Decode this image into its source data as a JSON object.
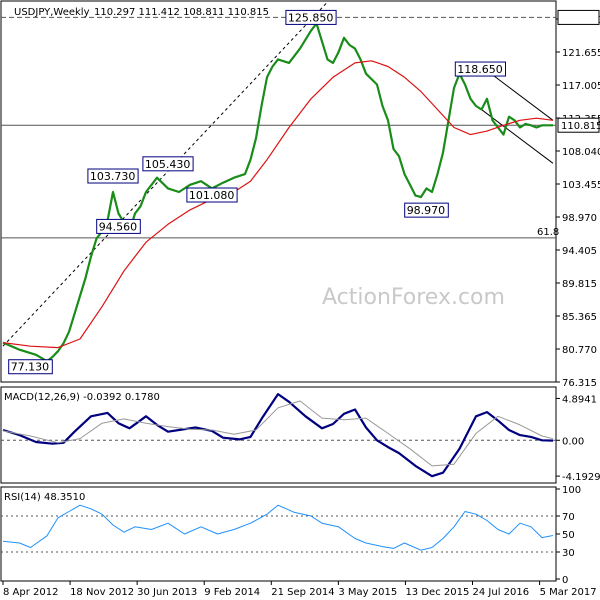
{
  "header": {
    "symbol": "USDJPY,Weekly",
    "ohlc": "110.297 111.412 108.811 110.815"
  },
  "watermark": "ActionForex.com",
  "colors": {
    "price": "#1a8c1a",
    "ma": "#dd1111",
    "macd": "#000080",
    "signal": "#999999",
    "rsi": "#1e90ff",
    "level": "#555555",
    "annotation_border": "#000080",
    "current_price_box": "#000000"
  },
  "chart_data": [
    {
      "panel": "price",
      "type": "line",
      "time_labels": [
        "8 Apr 2012",
        "18 Nov 2012",
        "30 Jun 2013",
        "9 Feb 2014",
        "21 Sep 2014",
        "3 May 2015",
        "13 Dec 2015",
        "24 Jul 2016",
        "5 Mar 2017"
      ],
      "y_ticks": [
        "125.850",
        "121.655",
        "117.005",
        "112.355",
        "108.040",
        "103.455",
        "98.970",
        "94.405",
        "89.815",
        "85.365",
        "80.770",
        "76.315"
      ],
      "ylim": [
        75.0,
        128.0
      ],
      "series": [
        {
          "kind": "price",
          "x": [
            0,
            0.03,
            0.06,
            0.08,
            0.09,
            0.1,
            0.11,
            0.12,
            0.13,
            0.14,
            0.15,
            0.16,
            0.17,
            0.18,
            0.19,
            0.2,
            0.21,
            0.23,
            0.24,
            0.25,
            0.26,
            0.28,
            0.3,
            0.32,
            0.34,
            0.36,
            0.38,
            0.4,
            0.42,
            0.44,
            0.45,
            0.46,
            0.47,
            0.48,
            0.49,
            0.5,
            0.52,
            0.54,
            0.56,
            0.57,
            0.58,
            0.59,
            0.6,
            0.61,
            0.62,
            0.63,
            0.64,
            0.65,
            0.66,
            0.68,
            0.69,
            0.7,
            0.71,
            0.72,
            0.73,
            0.74,
            0.75,
            0.76,
            0.77,
            0.78,
            0.79,
            0.8,
            0.81,
            0.82,
            0.83,
            0.84,
            0.85,
            0.86,
            0.87,
            0.88,
            0.89,
            0.9,
            0.91,
            0.92,
            0.93,
            0.94,
            0.95,
            0.96,
            0.97,
            0.98,
            0.99,
            1
          ],
          "y": [
            80.5,
            79.5,
            78.8,
            77.9,
            78.5,
            79.3,
            80.4,
            82.0,
            84.5,
            87.0,
            89.5,
            92.5,
            95.0,
            96.0,
            97.5,
            101.5,
            98.5,
            96.0,
            98.5,
            99.5,
            101.5,
            103.5,
            102.0,
            101.5,
            102.5,
            103.0,
            102.0,
            102.8,
            103.5,
            104.0,
            106.0,
            109.0,
            113.5,
            117.5,
            119.0,
            120.0,
            119.5,
            121.5,
            124.0,
            125.0,
            122.5,
            120.0,
            119.5,
            121.0,
            123.0,
            122.0,
            121.5,
            120.0,
            118.0,
            116.5,
            113.5,
            111.5,
            107.5,
            106.5,
            104.0,
            102.5,
            101.0,
            100.8,
            102.0,
            101.5,
            104.0,
            107.0,
            111.5,
            116.0,
            118.0,
            116.5,
            114.5,
            113.5,
            113.0,
            114.5,
            111.5,
            110.5,
            109.5,
            112.0,
            111.5,
            110.5,
            111.0,
            110.8,
            110.5,
            110.8,
            110.8,
            110.8
          ]
        },
        {
          "kind": "moving_average",
          "x": [
            0,
            0.05,
            0.1,
            0.14,
            0.18,
            0.22,
            0.26,
            0.3,
            0.34,
            0.38,
            0.42,
            0.45,
            0.48,
            0.52,
            0.56,
            0.6,
            0.64,
            0.67,
            0.7,
            0.73,
            0.76,
            0.79,
            0.82,
            0.85,
            0.88,
            0.91,
            0.94,
            0.97,
            1
          ],
          "y": [
            80.5,
            80.0,
            79.8,
            81.0,
            85.5,
            90.5,
            94.5,
            97.0,
            99.0,
            100.5,
            101.5,
            103.0,
            106.0,
            110.5,
            114.5,
            117.5,
            119.5,
            119.8,
            119.0,
            117.5,
            115.5,
            113.0,
            110.5,
            109.5,
            110.0,
            110.8,
            111.5,
            111.8,
            111.5
          ]
        }
      ],
      "levels": [
        {
          "label": "125.850",
          "value": 125.85,
          "style": "dashed"
        },
        {
          "label": "110.815",
          "value": 110.815,
          "style": "solid"
        },
        {
          "label": "61.8",
          "value": 95.1,
          "style": "solid"
        }
      ],
      "trendlines": [
        {
          "style": "dashed",
          "x": [
            0,
            0.59
          ],
          "y": [
            80.0,
            128.0
          ]
        },
        {
          "style": "solid",
          "x": [
            0.87,
            1.0
          ],
          "y": [
            119.0,
            111.5
          ]
        },
        {
          "style": "solid",
          "x": [
            0.87,
            1.0
          ],
          "y": [
            113.0,
            105.5
          ]
        }
      ],
      "annotations": [
        {
          "text": "125.850",
          "x": 0.56,
          "y": 125.85
        },
        {
          "text": "118.650",
          "x": 0.868,
          "y": 118.65
        },
        {
          "text": "105.430",
          "x": 0.3,
          "y": 105.43
        },
        {
          "text": "103.730",
          "x": 0.2,
          "y": 103.73
        },
        {
          "text": "101.080",
          "x": 0.38,
          "y": 101.08
        },
        {
          "text": "98.970",
          "x": 0.77,
          "y": 98.97
        },
        {
          "text": "94.560",
          "x": 0.21,
          "y": 96.7
        },
        {
          "text": "77.130",
          "x": 0.05,
          "y": 77.13
        }
      ],
      "current_price": "110.815"
    },
    {
      "panel": "macd",
      "type": "line",
      "title": "MACD(12,26,9) -0.0392 0.1780",
      "y_ticks": [
        "4.8941",
        "0.00",
        "-4.1929"
      ],
      "ylim": [
        -5.0,
        6.0
      ],
      "series": [
        {
          "kind": "macd",
          "x": [
            0,
            0.03,
            0.06,
            0.09,
            0.11,
            0.13,
            0.16,
            0.19,
            0.21,
            0.23,
            0.26,
            0.28,
            0.3,
            0.32,
            0.35,
            0.38,
            0.4,
            0.43,
            0.45,
            0.47,
            0.5,
            0.52,
            0.55,
            0.58,
            0.6,
            0.62,
            0.64,
            0.66,
            0.68,
            0.7,
            0.72,
            0.75,
            0.78,
            0.8,
            0.83,
            0.86,
            0.88,
            0.9,
            0.92,
            0.94,
            0.96,
            0.98,
            1
          ],
          "y": [
            1.2,
            0.6,
            -0.2,
            -0.4,
            -0.3,
            1.0,
            2.8,
            3.2,
            2.0,
            1.4,
            2.8,
            1.8,
            1.0,
            1.2,
            1.5,
            1.1,
            0.3,
            0.1,
            0.4,
            2.5,
            5.4,
            4.5,
            2.8,
            1.4,
            1.9,
            3.1,
            3.6,
            1.5,
            0.0,
            -0.8,
            -1.5,
            -3.0,
            -4.2,
            -3.8,
            -1.0,
            2.8,
            3.3,
            2.3,
            1.2,
            0.6,
            0.4,
            0.0,
            -0.04
          ]
        },
        {
          "kind": "signal",
          "x": [
            0,
            0.05,
            0.1,
            0.14,
            0.18,
            0.22,
            0.26,
            0.3,
            0.34,
            0.38,
            0.42,
            0.46,
            0.5,
            0.54,
            0.58,
            0.62,
            0.66,
            0.7,
            0.74,
            0.78,
            0.82,
            0.86,
            0.9,
            0.94,
            0.98,
            1
          ],
          "y": [
            1.1,
            0.5,
            -0.3,
            0.2,
            2.0,
            2.5,
            2.0,
            1.6,
            1.3,
            1.2,
            0.7,
            1.2,
            3.8,
            4.6,
            2.6,
            2.4,
            2.6,
            0.8,
            -1.0,
            -3.0,
            -2.8,
            0.8,
            2.8,
            1.8,
            0.5,
            0.18
          ]
        }
      ]
    },
    {
      "panel": "rsi",
      "type": "line",
      "title": "RSI(14) 48.3510",
      "y_ticks": [
        "100",
        "70",
        "50",
        "30",
        "0"
      ],
      "ylim": [
        0,
        100
      ],
      "series": [
        {
          "kind": "rsi",
          "x": [
            0,
            0.03,
            0.05,
            0.08,
            0.1,
            0.12,
            0.14,
            0.16,
            0.18,
            0.2,
            0.22,
            0.24,
            0.27,
            0.3,
            0.33,
            0.36,
            0.39,
            0.42,
            0.45,
            0.48,
            0.5,
            0.53,
            0.56,
            0.58,
            0.61,
            0.64,
            0.66,
            0.69,
            0.71,
            0.73,
            0.76,
            0.78,
            0.8,
            0.82,
            0.84,
            0.86,
            0.88,
            0.9,
            0.92,
            0.94,
            0.96,
            0.98,
            1
          ],
          "y": [
            42,
            40,
            35,
            48,
            68,
            75,
            82,
            78,
            72,
            60,
            52,
            58,
            55,
            62,
            50,
            58,
            50,
            55,
            62,
            72,
            82,
            74,
            70,
            62,
            58,
            45,
            40,
            36,
            34,
            40,
            32,
            35,
            45,
            58,
            75,
            72,
            65,
            55,
            50,
            62,
            58,
            46,
            48.35
          ]
        }
      ],
      "levels": [
        {
          "label": "70",
          "value": 70,
          "style": "dotted"
        },
        {
          "label": "30",
          "value": 30,
          "style": "dotted"
        }
      ]
    }
  ]
}
